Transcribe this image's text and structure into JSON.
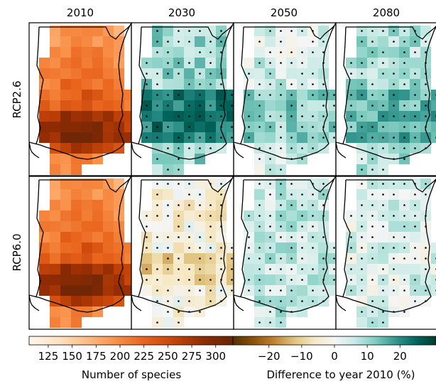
{
  "figure": {
    "columns": [
      "2010",
      "2030",
      "2050",
      "2080"
    ],
    "rows": [
      "RCP2.6",
      "RCP6.0"
    ]
  },
  "colorbars": {
    "species": {
      "label": "Number of species",
      "ticks": [
        125,
        150,
        175,
        200,
        225,
        250,
        275,
        300
      ],
      "range": [
        105,
        318
      ],
      "colors": [
        "#fff7ec",
        "#fee2c4",
        "#fdbc84",
        "#f98f47",
        "#e8621b",
        "#c64409",
        "#8f2b04",
        "#662506"
      ]
    },
    "difference": {
      "label": "Difference to year 2010 (%)",
      "ticks": [
        -20,
        -10,
        0,
        10,
        20
      ],
      "tick_labels": [
        "−20",
        "−10",
        "0",
        "10",
        "20"
      ],
      "range": [
        -31,
        31
      ],
      "colors": [
        "#543005",
        "#8c510a",
        "#bf812d",
        "#dfc27d",
        "#f6e8c3",
        "#f5f5f5",
        "#c7eae5",
        "#80cdc1",
        "#35978f",
        "#01665e",
        "#003c30"
      ]
    }
  },
  "colors": {
    "outline": "#000000",
    "stipple": "#000000",
    "panel_border": "#000000"
  }
}
